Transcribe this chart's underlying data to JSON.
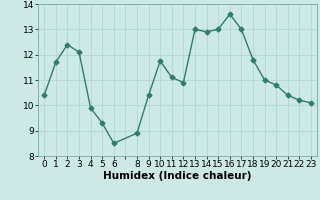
{
  "x": [
    0,
    1,
    2,
    3,
    4,
    5,
    6,
    8,
    9,
    10,
    11,
    12,
    13,
    14,
    15,
    16,
    17,
    18,
    19,
    20,
    21,
    22,
    23
  ],
  "y": [
    10.4,
    11.7,
    12.4,
    12.1,
    9.9,
    9.3,
    8.5,
    8.9,
    10.4,
    11.75,
    11.1,
    10.9,
    13.0,
    12.9,
    13.0,
    13.6,
    13.0,
    11.8,
    11.0,
    10.8,
    10.4,
    10.2,
    10.1
  ],
  "line_color": "#2e7d6e",
  "marker": "D",
  "marker_size": 2.5,
  "bg_color": "#cce9e5",
  "grid_color": "#b0d8d2",
  "xlabel": "Humidex (Indice chaleur)",
  "ylim": [
    8,
    14
  ],
  "xlim": [
    -0.5,
    23.5
  ],
  "yticks": [
    8,
    9,
    10,
    11,
    12,
    13,
    14
  ],
  "xtick_labels": [
    "0",
    "1",
    "2",
    "3",
    "4",
    "5",
    "6",
    "",
    "8",
    "9",
    "10",
    "11",
    "12",
    "13",
    "14",
    "15",
    "16",
    "17",
    "18",
    "19",
    "20",
    "21",
    "22",
    "23"
  ],
  "xtick_positions": [
    0,
    1,
    2,
    3,
    4,
    5,
    6,
    7,
    8,
    9,
    10,
    11,
    12,
    13,
    14,
    15,
    16,
    17,
    18,
    19,
    20,
    21,
    22,
    23
  ],
  "xlabel_fontsize": 7.5,
  "tick_fontsize": 6.5,
  "line_width": 1.0
}
